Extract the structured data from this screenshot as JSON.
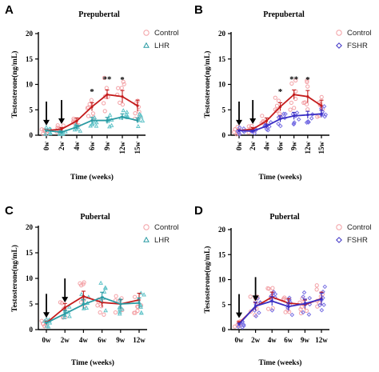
{
  "colors": {
    "control": "#c41c1c",
    "control_points": "#f3a0a5",
    "lhr": "#2a9ba3",
    "lhr_points": "#62c4c9",
    "fshr": "#3a2fc4",
    "fshr_points": "#7a72e4",
    "arrow": "#000000"
  },
  "icons": {
    "control_marker": "circle-outline",
    "lhr_marker": "triangle-outline",
    "fshr_marker": "diamond-outline",
    "timepoint_marker": "down-arrow"
  },
  "chart_data": [
    {
      "panel": "A",
      "type": "line",
      "title": "Prepubertal",
      "xlabel": "Time (weeks)",
      "ylabel": "Testosterone(ng/mL)",
      "ylim": [
        0,
        20
      ],
      "yticks": [
        "0",
        "5",
        "10",
        "15",
        "20"
      ],
      "categories": [
        "0w",
        "2w",
        "4w",
        "6w",
        "9w",
        "12w",
        "15w"
      ],
      "legend_position": "top-right",
      "series": [
        {
          "name": "Control",
          "color_key": "control",
          "marker": "circle",
          "values": [
            0.9,
            1.2,
            2.8,
            5.6,
            8.0,
            7.6,
            5.8
          ],
          "err": [
            0.2,
            0.3,
            0.6,
            0.8,
            0.9,
            1.2,
            1.1
          ]
        },
        {
          "name": "LHR",
          "color_key": "lhr",
          "marker": "triangle",
          "values": [
            0.9,
            0.6,
            1.6,
            2.9,
            2.9,
            3.6,
            2.9
          ],
          "err": [
            0.1,
            0.2,
            0.4,
            0.6,
            0.6,
            0.6,
            0.5
          ]
        }
      ],
      "significance": [
        {
          "category": "6w",
          "label": "*"
        },
        {
          "category": "9w",
          "label": "**"
        },
        {
          "category": "12w",
          "label": "*"
        }
      ],
      "arrows": [
        "0w",
        "2w"
      ]
    },
    {
      "panel": "B",
      "type": "line",
      "title": "Prepubertal",
      "xlabel": "Time (weeks)",
      "ylabel": "Testosterone(ng/mL)",
      "ylim": [
        0,
        20
      ],
      "yticks": [
        "0",
        "5",
        "10",
        "15",
        "20"
      ],
      "categories": [
        "0w",
        "2w",
        "4w",
        "6w",
        "9w",
        "12w",
        "15w"
      ],
      "legend_position": "top-right",
      "series": [
        {
          "name": "Control",
          "color_key": "control",
          "marker": "circle",
          "values": [
            0.9,
            1.2,
            2.8,
            5.6,
            8.0,
            7.6,
            5.8
          ],
          "err": [
            0.2,
            0.3,
            0.6,
            0.8,
            0.9,
            1.2,
            1.1
          ]
        },
        {
          "name": "FSHR",
          "color_key": "fshr",
          "marker": "diamond",
          "values": [
            0.9,
            0.8,
            1.8,
            3.2,
            3.8,
            4.0,
            4.2
          ],
          "err": [
            0.1,
            0.2,
            0.4,
            0.6,
            0.7,
            0.7,
            0.7
          ]
        }
      ],
      "significance": [
        {
          "category": "6w",
          "label": "*"
        },
        {
          "category": "9w",
          "label": "**"
        },
        {
          "category": "12w",
          "label": "*"
        }
      ],
      "arrows": [
        "0w",
        "2w"
      ]
    },
    {
      "panel": "C",
      "type": "line",
      "title": "Pubertal",
      "xlabel": "Time (weeks)",
      "ylabel": "Testosterone(ng/mL)",
      "ylim": [
        0,
        20
      ],
      "yticks": [
        "0",
        "5",
        "10",
        "15",
        "20"
      ],
      "categories": [
        "0w",
        "2w",
        "4w",
        "6w",
        "9w",
        "12w"
      ],
      "legend_position": "top-right",
      "series": [
        {
          "name": "Control",
          "color_key": "control",
          "marker": "circle",
          "values": [
            1.3,
            4.3,
            6.5,
            5.3,
            5.0,
            5.8
          ],
          "err": [
            0.3,
            0.8,
            1.0,
            0.9,
            0.9,
            1.3
          ]
        },
        {
          "name": "LHR",
          "color_key": "lhr",
          "marker": "triangle",
          "values": [
            1.3,
            3.1,
            4.9,
            6.3,
            5.0,
            5.2
          ],
          "err": [
            0.2,
            0.6,
            0.9,
            1.0,
            0.9,
            1.0
          ]
        }
      ],
      "significance": [],
      "arrows": [
        "0w",
        "2w"
      ]
    },
    {
      "panel": "D",
      "type": "line",
      "title": "Pubertal",
      "xlabel": "Time (weeks)",
      "ylabel": "Testosterone(ng/mL)",
      "ylim": [
        0,
        20
      ],
      "yticks": [
        "0",
        "5",
        "10",
        "15",
        "20"
      ],
      "categories": [
        "0w",
        "2w",
        "4w",
        "6w",
        "9w",
        "12w"
      ],
      "legend_position": "top-right",
      "series": [
        {
          "name": "Control",
          "color_key": "control",
          "marker": "circle",
          "values": [
            1.3,
            4.6,
            6.5,
            5.3,
            5.0,
            6.2
          ],
          "err": [
            0.3,
            0.8,
            1.0,
            0.9,
            0.9,
            1.3
          ]
        },
        {
          "name": "FSHR",
          "color_key": "fshr",
          "marker": "diamond",
          "values": [
            1.1,
            4.7,
            5.7,
            4.6,
            5.2,
            6.1
          ],
          "err": [
            0.2,
            0.8,
            0.9,
            0.8,
            0.9,
            1.2
          ]
        }
      ],
      "significance": [],
      "arrows": [
        "0w",
        "2w"
      ]
    }
  ]
}
